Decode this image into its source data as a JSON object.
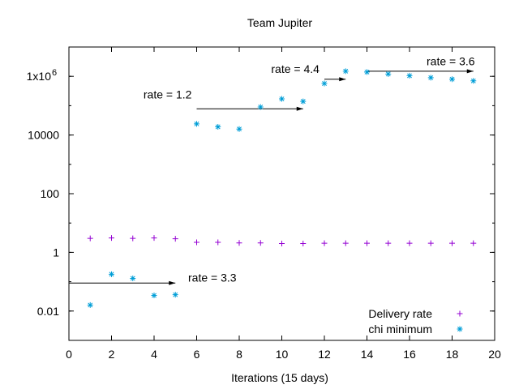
{
  "chart_data": {
    "type": "scatter",
    "title": "Team Jupiter",
    "xlabel": "Iterations (15 days)",
    "ylabel": "",
    "y_scale": "log",
    "xlim": [
      0,
      20
    ],
    "ylim": [
      0.001,
      10000000
    ],
    "x_ticks": [
      0,
      2,
      4,
      6,
      8,
      10,
      12,
      14,
      16,
      18,
      20
    ],
    "y_ticks": [
      {
        "value": 0.01,
        "label": "0.01"
      },
      {
        "value": 1,
        "label": "1"
      },
      {
        "value": 100,
        "label": "100"
      },
      {
        "value": 10000,
        "label": "10000"
      },
      {
        "value": 1000000,
        "label": "1x10",
        "sup": "6"
      }
    ],
    "legend_position": "bottom-right",
    "series": [
      {
        "name": "Delivery rate",
        "marker": "plus",
        "color": "#9400d3",
        "x": [
          1,
          2,
          3,
          4,
          5,
          6,
          7,
          8,
          9,
          10,
          11,
          12,
          13,
          14,
          15,
          16,
          17,
          18,
          19
        ],
        "y": [
          3.0,
          3.1,
          3.0,
          3.1,
          2.9,
          2.2,
          2.2,
          2.1,
          2.1,
          2.0,
          2.0,
          2.05,
          2.05,
          2.05,
          2.05,
          2.05,
          2.05,
          2.05,
          2.05
        ]
      },
      {
        "name": "chi minimum",
        "marker": "star",
        "color": "#009ed7",
        "x": [
          1,
          2,
          3,
          4,
          5,
          6,
          7,
          8,
          9,
          10,
          11,
          12,
          13,
          14,
          15,
          16,
          17,
          18,
          19
        ],
        "y": [
          0.016,
          0.18,
          0.13,
          0.034,
          0.036,
          24000,
          19000,
          16000,
          90000,
          170000,
          140000,
          570000,
          1500000,
          1400000,
          1200000,
          1050000,
          900000,
          800000,
          700000
        ]
      }
    ],
    "annotations": [
      {
        "text": "rate = 3.3",
        "x": 5.6,
        "y": 0.1
      },
      {
        "text": "rate = 1.2",
        "x": 3.5,
        "y": 175000
      },
      {
        "text": "rate = 4.4",
        "x": 9.5,
        "y": 1300000
      },
      {
        "text": "rate = 3.6",
        "x": 16.8,
        "y": 2400000
      }
    ],
    "arrows": [
      {
        "from": [
          0,
          0.09
        ],
        "to": [
          5,
          0.09
        ]
      },
      {
        "from": [
          6,
          78000
        ],
        "to": [
          11,
          78000
        ]
      },
      {
        "from": [
          12,
          800000
        ],
        "to": [
          13,
          800000
        ]
      },
      {
        "from": [
          14,
          1500000
        ],
        "to": [
          19,
          1500000
        ]
      }
    ]
  }
}
